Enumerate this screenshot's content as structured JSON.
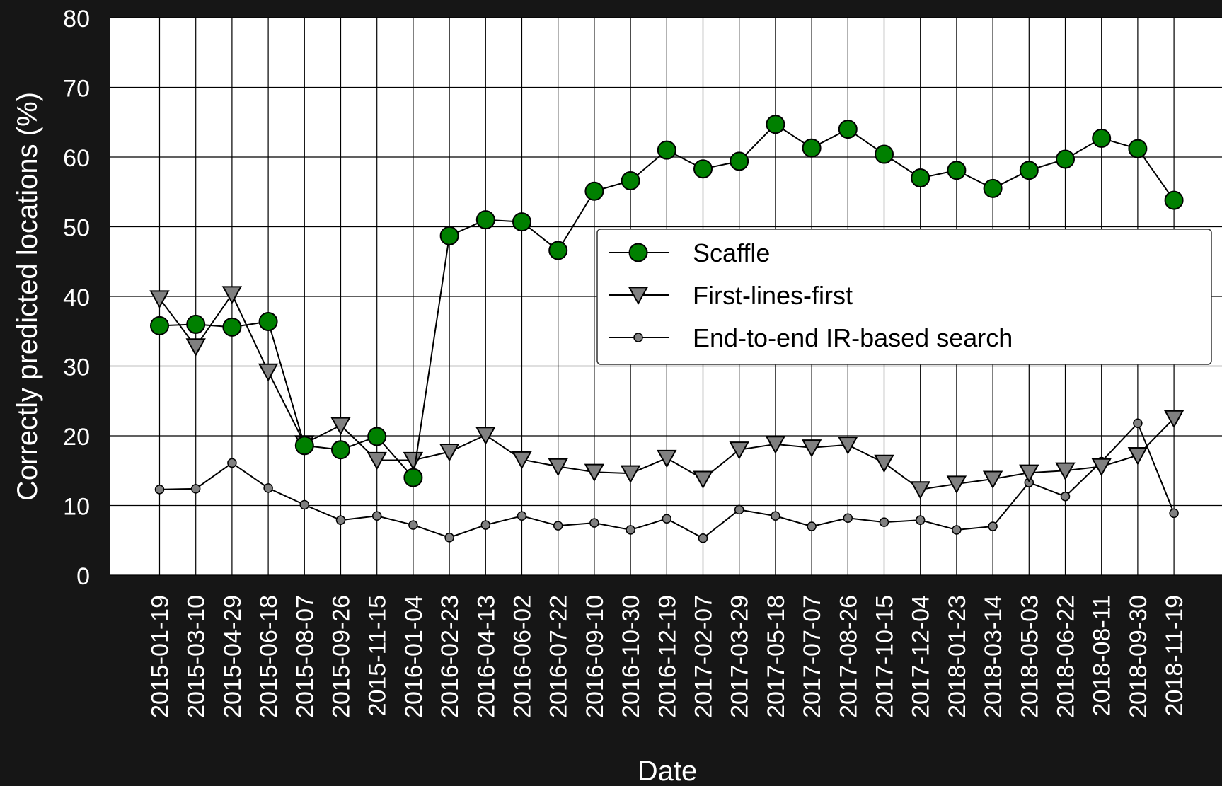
{
  "chart_data": {
    "type": "line",
    "xlabel": "Date",
    "ylabel": "Correctly predicted locations (%)",
    "ylim": [
      0,
      80
    ],
    "yticks": [
      0,
      10,
      20,
      30,
      40,
      50,
      60,
      70,
      80
    ],
    "grid": true,
    "legend_position": "center-right",
    "categories": [
      "2015-01-19",
      "2015-03-10",
      "2015-04-29",
      "2015-06-18",
      "2015-08-07",
      "2015-09-26",
      "2015-11-15",
      "2016-01-04",
      "2016-02-23",
      "2016-04-13",
      "2016-06-02",
      "2016-07-22",
      "2016-09-10",
      "2016-10-30",
      "2016-12-19",
      "2017-02-07",
      "2017-03-29",
      "2017-05-18",
      "2017-07-07",
      "2017-08-26",
      "2017-10-15",
      "2017-12-04",
      "2018-01-23",
      "2018-03-14",
      "2018-05-03",
      "2018-06-22",
      "2018-08-11",
      "2018-09-30",
      "2018-11-19"
    ],
    "series": [
      {
        "name": "Scaffle",
        "marker": "circle",
        "color": "#008000",
        "values": [
          35.8,
          36.0,
          35.6,
          36.4,
          18.6,
          18.0,
          19.9,
          14.0,
          48.7,
          51.0,
          50.7,
          46.6,
          55.1,
          56.6,
          61.0,
          58.3,
          59.4,
          64.7,
          61.3,
          64.0,
          60.4,
          57.0,
          58.1,
          55.5,
          58.1,
          59.7,
          62.7,
          61.2,
          53.8
        ]
      },
      {
        "name": "First-lines-first",
        "marker": "triangle-down",
        "color": "#808080",
        "values": [
          39.7,
          32.8,
          40.3,
          29.2,
          18.9,
          21.5,
          16.5,
          16.5,
          17.7,
          20.1,
          16.6,
          15.6,
          14.8,
          14.6,
          16.8,
          13.8,
          18.0,
          18.8,
          18.3,
          18.7,
          16.1,
          12.3,
          13.1,
          13.8,
          14.7,
          15.0,
          15.6,
          17.2,
          22.5
        ]
      },
      {
        "name": "End-to-end IR-based search",
        "marker": "small-circle",
        "color": "#808080",
        "values": [
          12.3,
          12.4,
          16.1,
          12.5,
          10.1,
          7.9,
          8.5,
          7.2,
          5.4,
          7.2,
          8.5,
          7.1,
          7.5,
          6.5,
          8.1,
          5.3,
          9.4,
          8.5,
          7.0,
          8.2,
          7.6,
          7.9,
          6.5,
          7.0,
          13.3,
          11.3,
          16.3,
          21.8,
          8.9
        ]
      }
    ]
  }
}
